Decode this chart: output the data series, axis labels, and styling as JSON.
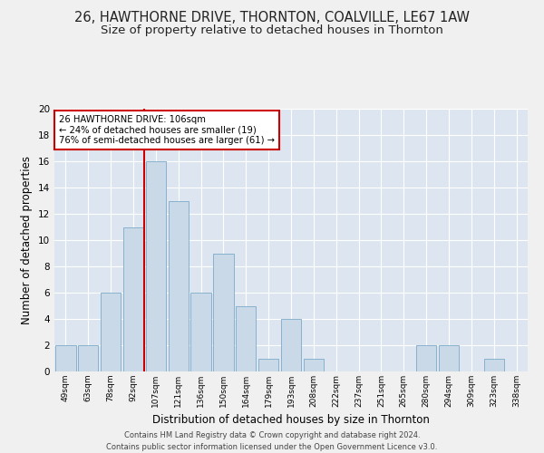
{
  "title": "26, HAWTHORNE DRIVE, THORNTON, COALVILLE, LE67 1AW",
  "subtitle": "Size of property relative to detached houses in Thornton",
  "xlabel": "Distribution of detached houses by size in Thornton",
  "ylabel": "Number of detached properties",
  "bar_labels": [
    "49sqm",
    "63sqm",
    "78sqm",
    "92sqm",
    "107sqm",
    "121sqm",
    "136sqm",
    "150sqm",
    "164sqm",
    "179sqm",
    "193sqm",
    "208sqm",
    "222sqm",
    "237sqm",
    "251sqm",
    "265sqm",
    "280sqm",
    "294sqm",
    "309sqm",
    "323sqm",
    "338sqm"
  ],
  "bar_values": [
    2,
    2,
    6,
    11,
    16,
    13,
    6,
    9,
    5,
    1,
    4,
    1,
    0,
    0,
    0,
    0,
    2,
    2,
    0,
    1,
    0
  ],
  "bar_color": "#c9d9e8",
  "bar_edgecolor": "#7aaac8",
  "background_color": "#dde6f0",
  "grid_color": "#ffffff",
  "vline_color": "#cc0000",
  "vline_x_index": 4,
  "annotation_text": "26 HAWTHORNE DRIVE: 106sqm\n← 24% of detached houses are smaller (19)\n76% of semi-detached houses are larger (61) →",
  "annotation_box_edgecolor": "#cc0000",
  "annotation_box_facecolor": "#ffffff",
  "footer_text": "Contains HM Land Registry data © Crown copyright and database right 2024.\nContains public sector information licensed under the Open Government Licence v3.0.",
  "ylim": [
    0,
    20
  ],
  "yticks": [
    0,
    2,
    4,
    6,
    8,
    10,
    12,
    14,
    16,
    18,
    20
  ],
  "title_fontsize": 10.5,
  "subtitle_fontsize": 9.5,
  "ylabel_fontsize": 8.5,
  "xlabel_fontsize": 8.5,
  "fig_bg": "#f0f0f0"
}
